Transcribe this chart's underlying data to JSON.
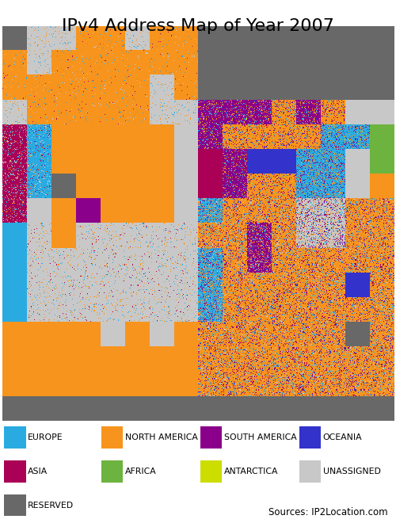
{
  "title": "IPv4 Address Map of Year 2007",
  "title_fontsize": 16,
  "source_text": "Sources: IP2Location.com",
  "colors": {
    "E": "#29ABE2",
    "NA": "#F7941D",
    "SA": "#8B008B",
    "OC": "#3333CC",
    "AS": "#AA0055",
    "AF": "#6DB33F",
    "AN": "#CCDD00",
    "UN": "#C8C8C8",
    "RE": "#686868",
    "WH": "#FFFFFF"
  },
  "legend": [
    {
      "label": "EUROPE",
      "color": "#29ABE2"
    },
    {
      "label": "NORTH AMERICA",
      "color": "#F7941D"
    },
    {
      "label": "SOUTH AMERICA",
      "color": "#8B008B"
    },
    {
      "label": "OCEANIA",
      "color": "#3333CC"
    },
    {
      "label": "ASIA",
      "color": "#AA0055"
    },
    {
      "label": "AFRICA",
      "color": "#6DB33F"
    },
    {
      "label": "ANTARCTICA",
      "color": "#CCDD00"
    },
    {
      "label": "UNASSIGNED",
      "color": "#C8C8C8"
    },
    {
      "label": "RESERVED",
      "color": "#686868"
    }
  ],
  "figsize": [
    5.0,
    6.6
  ]
}
